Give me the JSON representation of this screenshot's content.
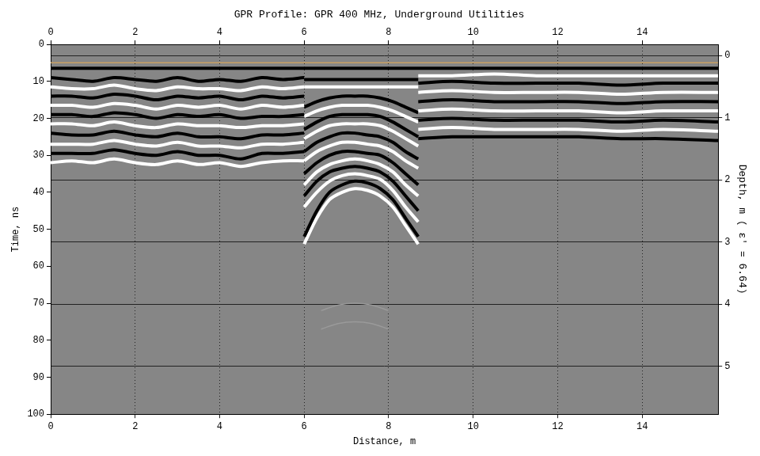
{
  "chart_data": {
    "type": "line",
    "title": "GPR Profile: GPR 400 MHz, Underground Utilities",
    "x_label": "Distance, m",
    "y_label": "Time, ns",
    "y2_label": "Depth, m ( ε' = 6.64)",
    "xlim": [
      0,
      15.8
    ],
    "xticks": [
      0,
      2,
      4,
      6,
      8,
      10,
      12,
      14
    ],
    "ylim": [
      0,
      100
    ],
    "yticks": [
      0,
      10,
      20,
      30,
      40,
      50,
      60,
      70,
      80,
      90,
      100
    ],
    "y2lim": [
      -0.18,
      5.77
    ],
    "y2ticks": [
      0,
      1,
      2,
      3,
      4,
      5
    ],
    "grid": true,
    "marker": "none",
    "series": [
      {
        "color": "#c8a064",
        "line_style": "thin",
        "x": [
          0,
          15.8
        ],
        "values": [
          5,
          5
        ]
      },
      {
        "color": "#000000",
        "line_style": "solid",
        "x": [
          0,
          15.8
        ],
        "values": [
          6.5,
          6.5
        ]
      },
      {
        "color": "#000000",
        "line_style": "solid",
        "x": [
          0,
          0.5,
          1,
          1.5,
          2,
          2.5,
          3,
          3.5,
          4,
          4.5,
          5,
          5.5,
          6
        ],
        "values": [
          9,
          9.5,
          10,
          9,
          9.5,
          10,
          9,
          10,
          9.5,
          10,
          9,
          9.5,
          9
        ]
      },
      {
        "color": "#ffffff",
        "line_style": "solid",
        "x": [
          0,
          0.5,
          1,
          1.5,
          2,
          2.5,
          3,
          3.5,
          4,
          4.5,
          5,
          5.5,
          6
        ],
        "values": [
          11.5,
          12,
          12,
          11,
          12,
          12.5,
          11.5,
          12,
          12,
          12.5,
          11.5,
          12,
          11.5
        ]
      },
      {
        "color": "#000000",
        "line_style": "solid",
        "x": [
          0,
          0.5,
          1,
          1.5,
          2,
          2.5,
          3,
          3.5,
          4,
          4.5,
          5,
          5.5,
          6
        ],
        "values": [
          14,
          14,
          14.5,
          13.5,
          14,
          15,
          14,
          14.5,
          14,
          15,
          14,
          14.5,
          14
        ]
      },
      {
        "color": "#ffffff",
        "line_style": "solid",
        "x": [
          0,
          0.5,
          1,
          1.5,
          2,
          2.5,
          3,
          3.5,
          4,
          4.5,
          5,
          5.5,
          6
        ],
        "values": [
          16.5,
          16.5,
          17,
          16,
          16.5,
          17.5,
          16.5,
          17,
          16.5,
          17.5,
          16.5,
          17,
          16.5
        ]
      },
      {
        "color": "#000000",
        "line_style": "solid",
        "x": [
          0,
          0.5,
          1,
          1.5,
          2,
          2.5,
          3,
          3.5,
          4,
          4.5,
          5,
          5.5,
          6
        ],
        "values": [
          19,
          19,
          19.5,
          18.5,
          19,
          20,
          19,
          19.5,
          19,
          20,
          19.5,
          19.5,
          19
        ]
      },
      {
        "color": "#ffffff",
        "line_style": "solid",
        "x": [
          0,
          0.5,
          1,
          1.5,
          2,
          2.5,
          3,
          3.5,
          4,
          4.5,
          5,
          5.5,
          6
        ],
        "values": [
          21.5,
          21.5,
          22,
          21,
          22,
          22.5,
          21.5,
          22,
          22,
          22.5,
          22,
          22,
          21.5
        ]
      },
      {
        "color": "#000000",
        "line_style": "solid",
        "x": [
          0,
          0.5,
          1,
          1.5,
          2,
          2.5,
          3,
          3.5,
          4,
          4.5,
          5,
          5.5,
          6
        ],
        "values": [
          24,
          24.5,
          24.5,
          23.5,
          24.5,
          25,
          24,
          25,
          25,
          25.5,
          24.5,
          24.5,
          24
        ]
      },
      {
        "color": "#ffffff",
        "line_style": "solid",
        "x": [
          0,
          0.5,
          1,
          1.5,
          2,
          2.5,
          3,
          3.5,
          4,
          4.5,
          5,
          5.5,
          6
        ],
        "values": [
          27,
          27,
          27,
          26,
          27,
          27.5,
          26.5,
          27.5,
          27.5,
          28,
          27,
          27,
          26.5
        ]
      },
      {
        "color": "#000000",
        "line_style": "solid",
        "x": [
          0,
          0.5,
          1,
          1.5,
          2,
          2.5,
          3,
          3.5,
          4,
          4.5,
          5,
          5.5,
          6
        ],
        "values": [
          29.5,
          29.5,
          29.5,
          28.5,
          29.5,
          30,
          29,
          30,
          30,
          31,
          29.5,
          29.5,
          29
        ]
      },
      {
        "color": "#ffffff",
        "line_style": "solid",
        "x": [
          0,
          0.5,
          1,
          1.5,
          2,
          2.5,
          3,
          3.5,
          4,
          4.5,
          5,
          5.5,
          6
        ],
        "values": [
          32,
          31.5,
          32,
          31,
          32,
          32.5,
          31.5,
          32.5,
          32,
          33,
          32,
          31.5,
          31.5
        ]
      },
      {
        "color": "#ffffff",
        "line_style": "solid",
        "x": [
          8.7,
          9.5,
          10.5,
          11.5,
          12.5,
          13.5,
          14.5,
          15.8
        ],
        "values": [
          8.5,
          8.5,
          8,
          8.5,
          8.5,
          8.5,
          8.5,
          8.5
        ]
      },
      {
        "color": "#000000",
        "line_style": "solid",
        "x": [
          8.7,
          9.5,
          10.5,
          11.5,
          12.5,
          13.5,
          14.5,
          15.8
        ],
        "values": [
          10.5,
          10,
          10.5,
          10.5,
          10.5,
          11,
          10.5,
          10.5
        ]
      },
      {
        "color": "#ffffff",
        "line_style": "solid",
        "x": [
          8.7,
          9.5,
          10.5,
          11.5,
          12.5,
          13.5,
          14.5,
          15.8
        ],
        "values": [
          13,
          12.5,
          13,
          13,
          13,
          13.5,
          13,
          13
        ]
      },
      {
        "color": "#000000",
        "line_style": "solid",
        "x": [
          8.7,
          9.5,
          10.5,
          11.5,
          12.5,
          13.5,
          14.5,
          15.8
        ],
        "values": [
          15.5,
          15,
          15.5,
          15.5,
          15.5,
          16,
          15.5,
          15.5
        ]
      },
      {
        "color": "#ffffff",
        "line_style": "solid",
        "x": [
          8.7,
          9.5,
          10.5,
          11.5,
          12.5,
          13.5,
          14.5,
          15.8
        ],
        "values": [
          18,
          17.5,
          18,
          18,
          18,
          18.5,
          18,
          18
        ]
      },
      {
        "color": "#000000",
        "line_style": "solid",
        "x": [
          8.7,
          9.5,
          10.5,
          11.5,
          12.5,
          13.5,
          14.5,
          15.8
        ],
        "values": [
          20.5,
          20,
          20.5,
          20.5,
          20.5,
          21,
          20.5,
          21
        ]
      },
      {
        "color": "#ffffff",
        "line_style": "solid",
        "x": [
          8.7,
          9.5,
          10.5,
          11.5,
          12.5,
          13.5,
          14.5,
          15.8
        ],
        "values": [
          23,
          22.5,
          23,
          23,
          23,
          23.5,
          23,
          23.5
        ]
      },
      {
        "color": "#000000",
        "line_style": "solid",
        "x": [
          8.7,
          9.5,
          10.5,
          11.5,
          12.5,
          13.5,
          14.5,
          15.8
        ],
        "values": [
          25.5,
          25,
          25,
          25,
          25,
          25.5,
          25.5,
          26
        ]
      },
      {
        "color": "#000000",
        "line_style": "solid",
        "x": [
          6,
          8.7
        ],
        "values": [
          9.5,
          9.5
        ]
      },
      {
        "color": "#ffffff",
        "line_style": "solid",
        "x": [
          6,
          8.7
        ],
        "values": [
          11.5,
          11.5
        ]
      },
      {
        "color": "#000000",
        "line_style": "solid",
        "x": [
          6,
          6.3,
          6.6,
          6.9,
          7.2,
          7.5,
          7.8,
          8.1,
          8.4,
          8.7
        ],
        "values": [
          17,
          15.5,
          14.5,
          14,
          14,
          14,
          14.5,
          15.5,
          17,
          18.5
        ]
      },
      {
        "color": "#ffffff",
        "line_style": "solid",
        "x": [
          6,
          6.3,
          6.6,
          6.9,
          7.2,
          7.5,
          7.8,
          8.1,
          8.4,
          8.7
        ],
        "values": [
          19.5,
          18,
          17,
          16.5,
          16.5,
          16.5,
          17,
          18,
          19.5,
          21
        ]
      },
      {
        "color": "#000000",
        "line_style": "solid",
        "x": [
          6,
          6.3,
          6.6,
          6.9,
          7.2,
          7.5,
          7.8,
          8.1,
          8.4,
          8.7
        ],
        "values": [
          23,
          21,
          19.5,
          19,
          19,
          19,
          19.5,
          21,
          23,
          25
        ]
      },
      {
        "color": "#ffffff",
        "line_style": "solid",
        "x": [
          6,
          6.3,
          6.6,
          6.9,
          7.2,
          7.5,
          7.8,
          8.1,
          8.4,
          8.7
        ],
        "values": [
          25.5,
          23.5,
          22,
          21.5,
          21.5,
          21.5,
          22,
          23.5,
          25.5,
          27.5
        ]
      },
      {
        "color": "#000000",
        "line_style": "solid",
        "x": [
          6,
          6.3,
          6.6,
          6.9,
          7.2,
          7.5,
          7.8,
          8.1,
          8.4,
          8.7
        ],
        "values": [
          29,
          26.5,
          25,
          24,
          24,
          24.5,
          25,
          26.5,
          29,
          31
        ]
      },
      {
        "color": "#ffffff",
        "line_style": "solid",
        "x": [
          6,
          6.3,
          6.6,
          6.9,
          7.2,
          7.5,
          7.8,
          8.1,
          8.4,
          8.7
        ],
        "values": [
          31.5,
          29,
          27.5,
          26.5,
          26.5,
          27,
          27.5,
          29,
          31.5,
          33.5
        ]
      },
      {
        "color": "#000000",
        "line_style": "solid",
        "x": [
          6,
          6.3,
          6.6,
          6.9,
          7.2,
          7.5,
          7.8,
          8.1,
          8.4,
          8.7
        ],
        "values": [
          35,
          32,
          30,
          29,
          29,
          29.5,
          30,
          32,
          35,
          38
        ]
      },
      {
        "color": "#ffffff",
        "line_style": "solid",
        "x": [
          6,
          6.3,
          6.6,
          6.9,
          7.2,
          7.5,
          7.8,
          8.1,
          8.4,
          8.7
        ],
        "values": [
          38,
          34.5,
          32.5,
          31.5,
          31,
          31.5,
          32.5,
          34.5,
          38,
          41
        ]
      },
      {
        "color": "#000000",
        "line_style": "solid",
        "x": [
          6,
          6.3,
          6.6,
          6.9,
          7.2,
          7.5,
          7.8,
          8.1,
          8.4,
          8.7
        ],
        "values": [
          41,
          37,
          34.5,
          33.5,
          33,
          33.5,
          34.5,
          37,
          41,
          45
        ]
      },
      {
        "color": "#ffffff",
        "line_style": "solid",
        "x": [
          6,
          6.3,
          6.6,
          6.9,
          7.2,
          7.5,
          7.8,
          8.1,
          8.4,
          8.7
        ],
        "values": [
          44,
          40,
          37,
          35.5,
          35,
          35.5,
          36.5,
          39.5,
          44,
          48
        ]
      },
      {
        "color": "#000000",
        "line_style": "solid",
        "x": [
          6,
          6.3,
          6.6,
          6.9,
          7.2,
          7.5,
          7.8,
          8.1,
          8.4,
          8.7
        ],
        "values": [
          52,
          45,
          40,
          38,
          37,
          37.5,
          39,
          42,
          47,
          52
        ]
      },
      {
        "color": "#ffffff",
        "line_style": "solid",
        "x": [
          6,
          6.3,
          6.6,
          6.9,
          7.2,
          7.5,
          7.8,
          8.1,
          8.4,
          8.7
        ],
        "values": [
          54,
          47,
          42,
          40,
          39,
          39.5,
          41,
          44,
          49,
          54
        ]
      },
      {
        "color": "#9a9a9a",
        "line_style": "thin",
        "x": [
          6.4,
          6.8,
          7.2,
          7.6,
          8.0
        ],
        "values": [
          72,
          70.5,
          70,
          70.5,
          72
        ]
      },
      {
        "color": "#9a9a9a",
        "line_style": "thin",
        "x": [
          6.4,
          6.8,
          7.2,
          7.6,
          8.0
        ],
        "values": [
          77,
          75.5,
          75,
          75.5,
          77
        ]
      }
    ]
  }
}
